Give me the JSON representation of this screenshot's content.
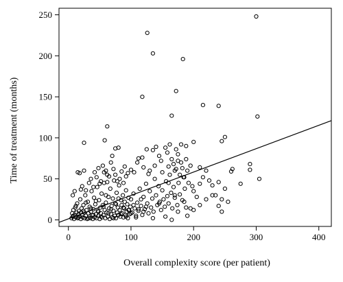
{
  "chart_data": {
    "type": "scatter",
    "title": "",
    "xlabel": "Overall complexity score (per patient)",
    "ylabel": "Time of treatment (months)",
    "xlim": [
      -15,
      420
    ],
    "ylim": [
      -8,
      258
    ],
    "xticks": [
      0,
      100,
      200,
      300,
      400
    ],
    "yticks": [
      0,
      50,
      100,
      150,
      200,
      250
    ],
    "grid": false,
    "legend": "none",
    "trend_line": {
      "type": "linear",
      "x": [
        -15,
        420
      ],
      "y": [
        -3,
        121
      ]
    },
    "series": [
      {
        "points": [
          [
            5,
            2
          ],
          [
            6,
            8
          ],
          [
            7,
            4
          ],
          [
            8,
            12
          ],
          [
            9,
            1
          ],
          [
            10,
            6
          ],
          [
            11,
            15
          ],
          [
            12,
            3
          ],
          [
            13,
            9
          ],
          [
            14,
            20
          ],
          [
            15,
            2
          ],
          [
            16,
            7
          ],
          [
            17,
            11
          ],
          [
            18,
            4
          ],
          [
            19,
            25
          ],
          [
            20,
            1
          ],
          [
            21,
            14
          ],
          [
            22,
            6
          ],
          [
            23,
            3
          ],
          [
            24,
            18
          ],
          [
            25,
            9
          ],
          [
            26,
            2
          ],
          [
            27,
            30
          ],
          [
            28,
            5
          ],
          [
            29,
            12
          ],
          [
            30,
            1
          ],
          [
            31,
            22
          ],
          [
            32,
            8
          ],
          [
            33,
            4
          ],
          [
            34,
            16
          ],
          [
            35,
            2
          ],
          [
            36,
            10
          ],
          [
            37,
            35
          ],
          [
            38,
            6
          ],
          [
            39,
            1
          ],
          [
            40,
            13
          ],
          [
            41,
            27
          ],
          [
            42,
            3
          ],
          [
            43,
            19
          ],
          [
            44,
            7
          ],
          [
            45,
            2
          ],
          [
            46,
            40
          ],
          [
            47,
            11
          ],
          [
            48,
            5
          ],
          [
            49,
            24
          ],
          [
            50,
            1
          ],
          [
            51,
            15
          ],
          [
            52,
            8
          ],
          [
            53,
            32
          ],
          [
            54,
            3
          ],
          [
            55,
            18
          ],
          [
            56,
            6
          ],
          [
            57,
            45
          ],
          [
            58,
            12
          ],
          [
            59,
            2
          ],
          [
            60,
            21
          ],
          [
            61,
            9
          ],
          [
            62,
            55
          ],
          [
            63,
            4
          ],
          [
            64,
            28
          ],
          [
            65,
            14
          ],
          [
            66,
            1
          ],
          [
            67,
            38
          ],
          [
            68,
            7
          ],
          [
            69,
            17
          ],
          [
            70,
            3
          ],
          [
            71,
            26
          ],
          [
            72,
            11
          ],
          [
            73,
            48
          ],
          [
            74,
            5
          ],
          [
            75,
            20
          ],
          [
            76,
            2
          ],
          [
            77,
            33
          ],
          [
            78,
            9
          ],
          [
            79,
            15
          ],
          [
            80,
            6
          ],
          [
            81,
            42
          ],
          [
            82,
            12
          ],
          [
            83,
            4
          ],
          [
            84,
            24
          ],
          [
            85,
            18
          ],
          [
            86,
            8
          ],
          [
            87,
            30
          ],
          [
            88,
            3
          ],
          [
            89,
            14
          ],
          [
            90,
            22
          ],
          [
            91,
            6
          ],
          [
            92,
            36
          ],
          [
            93,
            10
          ],
          [
            94,
            19
          ],
          [
            95,
            2
          ],
          [
            96,
            27
          ],
          [
            97,
            12
          ],
          [
            98,
            7
          ],
          [
            99,
            16
          ],
          [
            100,
            25
          ],
          [
            102,
            9
          ],
          [
            104,
            32
          ],
          [
            106,
            14
          ],
          [
            108,
            5
          ],
          [
            110,
            21
          ],
          [
            112,
            11
          ],
          [
            114,
            38
          ],
          [
            116,
            17
          ],
          [
            118,
            6
          ],
          [
            120,
            28
          ],
          [
            122,
            13
          ],
          [
            124,
            44
          ],
          [
            126,
            20
          ],
          [
            128,
            8
          ],
          [
            130,
            35
          ],
          [
            132,
            15
          ],
          [
            134,
            26
          ],
          [
            136,
            10
          ],
          [
            138,
            50
          ],
          [
            140,
            30
          ],
          [
            142,
            18
          ],
          [
            144,
            41
          ],
          [
            146,
            22
          ],
          [
            148,
            12
          ],
          [
            150,
            36
          ],
          [
            152,
            25
          ],
          [
            154,
            16
          ],
          [
            156,
            47
          ],
          [
            158,
            29
          ],
          [
            160,
            20
          ],
          [
            162,
            55
          ],
          [
            164,
            33
          ],
          [
            166,
            14
          ],
          [
            168,
            40
          ],
          [
            170,
            27
          ],
          [
            172,
            62
          ],
          [
            174,
            18
          ],
          [
            176,
            45
          ],
          [
            178,
            31
          ],
          [
            180,
            70
          ],
          [
            182,
            24
          ],
          [
            184,
            52
          ],
          [
            186,
            38
          ],
          [
            188,
            15
          ],
          [
            8,
            5
          ],
          [
            12,
            17
          ],
          [
            16,
            3
          ],
          [
            20,
            9
          ],
          [
            24,
            11
          ],
          [
            28,
            21
          ],
          [
            32,
            2
          ],
          [
            36,
            14
          ],
          [
            40,
            6
          ],
          [
            44,
            23
          ],
          [
            48,
            10
          ],
          [
            52,
            4
          ],
          [
            56,
            16
          ],
          [
            60,
            30
          ],
          [
            64,
            8
          ],
          [
            68,
            13
          ],
          [
            72,
            2
          ],
          [
            76,
            19
          ],
          [
            80,
            26
          ],
          [
            84,
            7
          ],
          [
            88,
            15
          ],
          [
            92,
            4
          ],
          [
            96,
            12
          ],
          [
            100,
            8
          ],
          [
            104,
            18
          ],
          [
            108,
            3
          ],
          [
            112,
            13
          ],
          [
            116,
            25
          ],
          [
            120,
            10
          ],
          [
            124,
            16
          ],
          [
            7,
            30
          ],
          [
            10,
            35
          ],
          [
            15,
            58
          ],
          [
            18,
            57
          ],
          [
            20,
            37
          ],
          [
            22,
            41
          ],
          [
            25,
            60
          ],
          [
            28,
            36
          ],
          [
            33,
            45
          ],
          [
            36,
            50
          ],
          [
            40,
            40
          ],
          [
            42,
            58
          ],
          [
            45,
            52
          ],
          [
            48,
            63
          ],
          [
            50,
            44
          ],
          [
            52,
            47
          ],
          [
            55,
            66
          ],
          [
            57,
            58
          ],
          [
            60,
            60
          ],
          [
            62,
            46
          ],
          [
            65,
            53
          ],
          [
            68,
            70
          ],
          [
            70,
            78
          ],
          [
            72,
            62
          ],
          [
            75,
            55
          ],
          [
            78,
            47
          ],
          [
            80,
            88
          ],
          [
            82,
            50
          ],
          [
            85,
            59
          ],
          [
            88,
            45
          ],
          [
            90,
            65
          ],
          [
            92,
            53
          ],
          [
            95,
            57
          ],
          [
            100,
            61
          ],
          [
            105,
            58
          ],
          [
            110,
            70
          ],
          [
            112,
            75
          ],
          [
            118,
            76
          ],
          [
            120,
            64
          ],
          [
            125,
            86
          ],
          [
            128,
            56
          ],
          [
            130,
            60
          ],
          [
            135,
            85
          ],
          [
            138,
            66
          ],
          [
            140,
            89
          ],
          [
            145,
            78
          ],
          [
            148,
            72
          ],
          [
            150,
            58
          ],
          [
            155,
            88
          ],
          [
            158,
            82
          ],
          [
            160,
            65
          ],
          [
            162,
            92
          ],
          [
            165,
            74
          ],
          [
            168,
            68
          ],
          [
            170,
            60
          ],
          [
            172,
            86
          ],
          [
            175,
            72
          ],
          [
            178,
            55
          ],
          [
            180,
            92
          ],
          [
            182,
            63
          ],
          [
            185,
            52
          ],
          [
            188,
            74
          ],
          [
            190,
            60
          ],
          [
            192,
            45
          ],
          [
            195,
            66
          ],
          [
            198,
            41
          ],
          [
            200,
            35
          ],
          [
            205,
            28
          ],
          [
            210,
            44
          ],
          [
            215,
            52
          ],
          [
            220,
            60
          ],
          [
            225,
            48
          ],
          [
            230,
            42
          ],
          [
            235,
            30
          ],
          [
            240,
            46
          ],
          [
            245,
            25
          ],
          [
            250,
            38
          ],
          [
            260,
            59
          ],
          [
            275,
            44
          ],
          [
            290,
            61
          ],
          [
            25,
            94
          ],
          [
            62,
            114
          ],
          [
            58,
            97
          ],
          [
            75,
            87
          ],
          [
            118,
            150
          ],
          [
            126,
            228
          ],
          [
            135,
            203
          ],
          [
            165,
            127
          ],
          [
            172,
            157
          ],
          [
            175,
            80
          ],
          [
            183,
            196
          ],
          [
            188,
            90
          ],
          [
            200,
            95
          ],
          [
            210,
            64
          ],
          [
            215,
            140
          ],
          [
            240,
            139
          ],
          [
            245,
            96
          ],
          [
            250,
            101
          ],
          [
            262,
            62
          ],
          [
            290,
            68
          ],
          [
            300,
            248
          ],
          [
            302,
            126
          ],
          [
            305,
            50
          ],
          [
            195,
            14
          ],
          [
            185,
            22
          ],
          [
            175,
            10
          ],
          [
            165,
            0
          ],
          [
            155,
            4
          ],
          [
            145,
            20
          ],
          [
            135,
            2
          ],
          [
            190,
            5
          ],
          [
            200,
            12
          ],
          [
            210,
            18
          ],
          [
            220,
            25
          ],
          [
            230,
            30
          ],
          [
            240,
            17
          ],
          [
            245,
            10
          ],
          [
            255,
            22
          ],
          [
            170,
            30
          ],
          [
            160,
            45
          ]
        ]
      }
    ]
  }
}
